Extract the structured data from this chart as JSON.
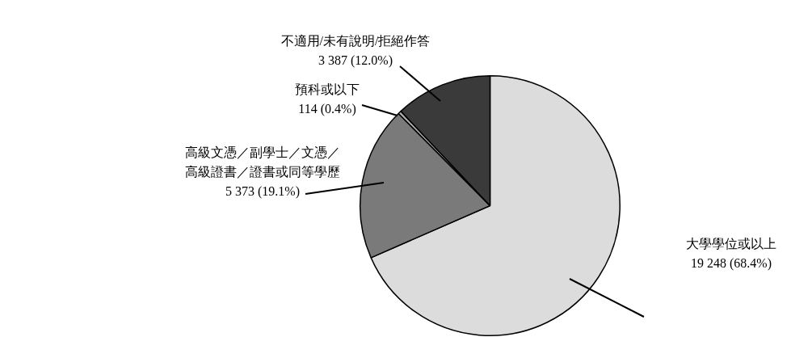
{
  "chart_data": {
    "type": "pie",
    "categories": [
      "大學學位或以上",
      "高級文憑／副學士／文憑／高級證書／證書或同等學歷",
      "預科或以下",
      "不適用/未有說明/拒絕作答"
    ],
    "values": [
      19248,
      5373,
      114,
      3387
    ],
    "colors": [
      "#dcdcdc",
      "#7a7a7a",
      "#b0b0b0",
      "#3a3a3a"
    ],
    "value_labels": [
      "19 248 (68.4%)",
      "5 373 (19.1%)",
      "114 (0.4%)",
      "3 387 (12.0%)"
    ],
    "legend": false
  }
}
